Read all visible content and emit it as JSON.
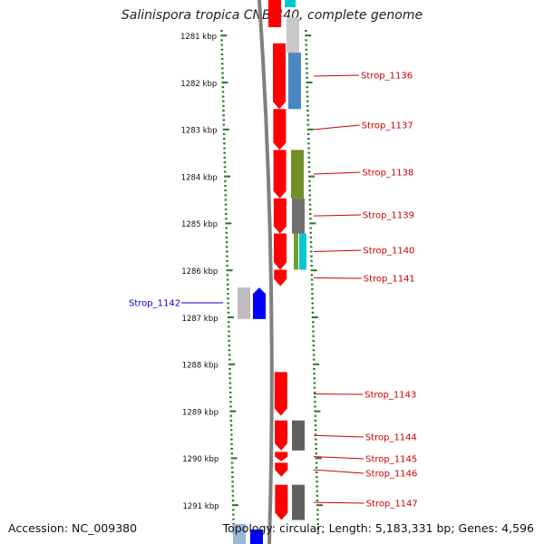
{
  "title": "Salinispora tropica CNB-440, complete genome",
  "accession": "Accession: NC_009380",
  "summary": "Topology: circular; Length: 5,183,331 bp; Genes: 4,596",
  "colors": {
    "forward_gene": "#ff0000",
    "reverse_gene": "#0000ff",
    "forward_label": "#cc0000",
    "reverse_label": "#0000cc",
    "tick": "#1f7a1f",
    "backbone": "#808080"
  },
  "scale_labels": [
    "1281 kbp",
    "1282 kbp",
    "1283 kbp",
    "1284 kbp",
    "1285 kbp",
    "1286 kbp",
    "1287 kbp",
    "1288 kbp",
    "1289 kbp",
    "1290 kbp",
    "1291 kbp"
  ],
  "genes_forward": [
    {
      "name": "Strop_1136",
      "start": 1281.15,
      "end": 1282.55
    },
    {
      "name": "Strop_1137",
      "start": 1282.55,
      "end": 1283.42
    },
    {
      "name": "Strop_1138",
      "start": 1283.42,
      "end": 1284.45
    },
    {
      "name": "Strop_1139",
      "start": 1284.45,
      "end": 1285.2
    },
    {
      "name": "Strop_1140",
      "start": 1285.2,
      "end": 1285.97
    },
    {
      "name": "Strop_1141",
      "start": 1285.97,
      "end": 1286.32
    },
    {
      "name": "Strop_1143",
      "start": 1288.15,
      "end": 1289.08
    },
    {
      "name": "Strop_1144",
      "start": 1289.18,
      "end": 1289.82
    },
    {
      "name": "Strop_1145",
      "start": 1289.85,
      "end": 1290.05
    },
    {
      "name": "Strop_1146",
      "start": 1290.08,
      "end": 1290.38
    },
    {
      "name": "Strop_1147",
      "start": 1290.55,
      "end": 1291.3
    }
  ],
  "genes_reverse": [
    {
      "name": "Strop_1142",
      "start": 1286.35,
      "end": 1287.02
    }
  ],
  "feature_blocks": [
    {
      "name": "Strop_1136",
      "start": 1280.6,
      "end": 1281.35,
      "color": "#c9c9c9"
    },
    {
      "name": "Strop_1136",
      "start": 1281.35,
      "end": 1282.55,
      "color": "#4a86c0"
    },
    {
      "name": "Strop_1138",
      "start": 1283.42,
      "end": 1284.45,
      "color": "#6f8f26"
    },
    {
      "name": "Strop_1139",
      "start": 1284.45,
      "end": 1285.2,
      "color": "#707070"
    },
    {
      "name": "Strop_1140",
      "start": 1285.2,
      "end": 1285.97,
      "color": "#6aa030"
    },
    {
      "name": "Strop_1140",
      "start": 1285.2,
      "end": 1285.97,
      "color": "#00c8d0"
    },
    {
      "name": "Strop_1144",
      "start": 1289.18,
      "end": 1289.82,
      "color": "#606060"
    },
    {
      "name": "Strop_1147",
      "start": 1290.55,
      "end": 1291.3,
      "color": "#606060"
    },
    {
      "name": "Strop_1142",
      "start": 1286.35,
      "end": 1287.02,
      "color": "#bdbdbd"
    }
  ]
}
